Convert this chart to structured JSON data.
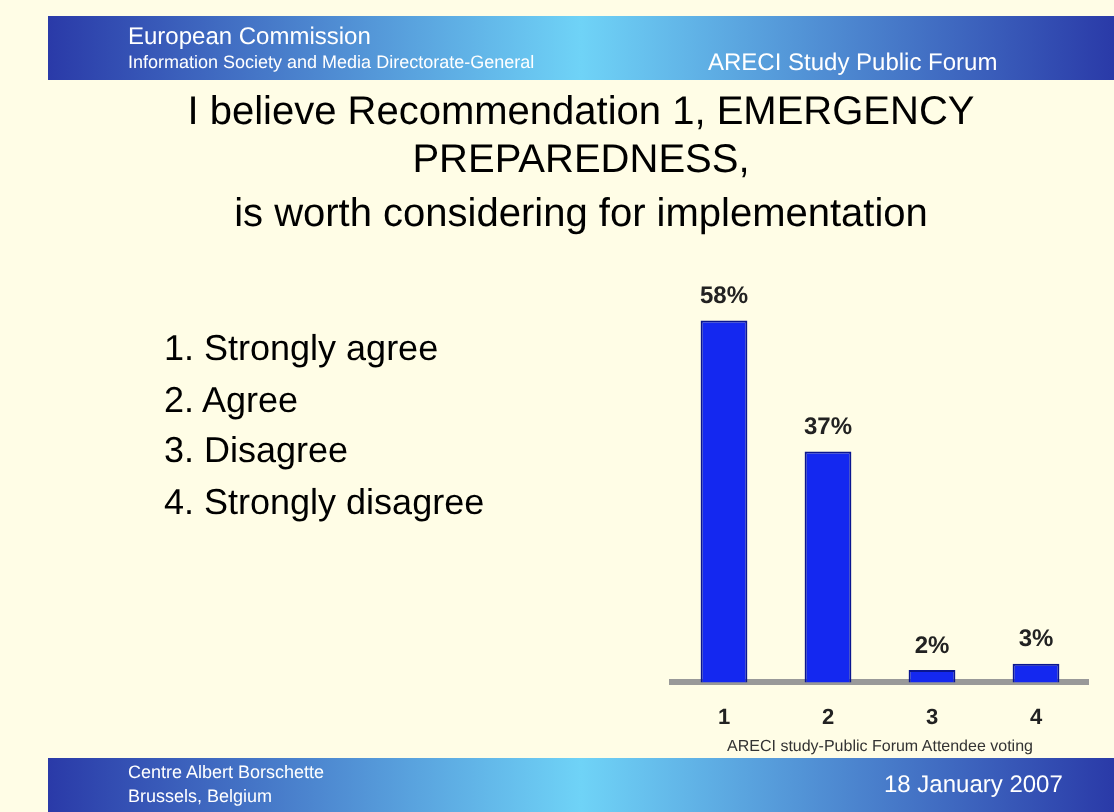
{
  "chart_data": {
    "type": "bar",
    "title": "I believe Recommendation 1, EMERGENCY PREPAREDNESS,",
    "subtitle": "is worth considering for implementation",
    "categories": [
      "1",
      "2",
      "3",
      "4"
    ],
    "values": [
      58,
      37,
      2,
      3
    ],
    "color": "#1428f0",
    "data_labels": true,
    "value_labels": [
      "58%",
      "37%",
      "2%",
      "3%"
    ],
    "xlabel": "ARECI study-Public Forum Attendee voting",
    "grid": false,
    "legend": false,
    "annotations": [
      "European Commission",
      "Information Society and Media Directorate-General",
      "ARECI Study Public Forum",
      "1.  Strongly agree",
      "2.  Agree",
      "3.  Disagree",
      "4.  Strongly disagree",
      "Centre Albert Borschette",
      "Brussels, Belgium",
      "18 January 2007"
    ]
  }
}
